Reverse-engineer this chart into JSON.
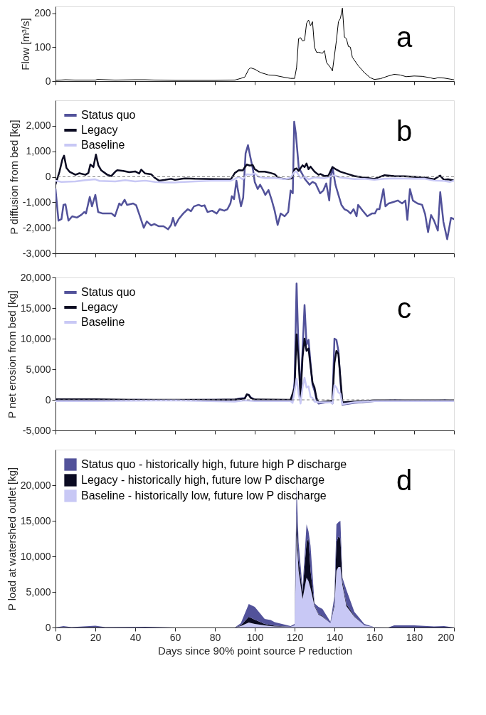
{
  "chart_data": [
    {
      "type": "line",
      "ylabel": "Flow [m³/s]",
      "annotations": [
        "a"
      ],
      "xlim": [
        0,
        200
      ],
      "xticks": [
        0,
        20,
        40,
        60,
        80,
        100,
        120,
        140,
        160,
        180,
        200
      ],
      "ylim": [
        0,
        220
      ],
      "yticks": [
        0,
        100,
        200
      ],
      "tick_labels": "y",
      "grid": false,
      "legend": false,
      "marker": "none",
      "line_style": "solid",
      "series": [
        {
          "color": "#000000",
          "x": [
            0,
            5,
            10,
            20,
            21,
            30,
            40,
            45,
            50,
            60,
            70,
            80,
            90,
            93,
            95,
            97,
            98,
            100,
            103,
            107,
            110,
            115,
            118,
            120,
            121,
            122,
            123,
            124,
            125,
            126,
            127,
            128,
            129,
            130,
            131,
            132,
            134,
            135,
            136,
            138,
            139,
            141,
            142,
            143,
            144,
            145,
            146,
            147,
            148,
            149,
            152,
            155,
            158,
            160,
            163,
            167,
            170,
            173,
            176,
            180,
            184,
            188,
            190,
            192,
            195,
            198,
            200
          ],
          "values": [
            2,
            4,
            3,
            3,
            5,
            3,
            4,
            4,
            3,
            2,
            2,
            2,
            3,
            8,
            12,
            35,
            39,
            35,
            25,
            18,
            17,
            11,
            8,
            8,
            40,
            125,
            128,
            118,
            120,
            170,
            180,
            163,
            175,
            100,
            85,
            85,
            82,
            90,
            55,
            40,
            30,
            120,
            175,
            185,
            215,
            130,
            125,
            102,
            100,
            70,
            45,
            25,
            10,
            5,
            7,
            15,
            20,
            18,
            13,
            15,
            14,
            10,
            7,
            10,
            9,
            6,
            4
          ]
        }
      ]
    },
    {
      "type": "line",
      "ylabel": "P diffusion from bed [kg]",
      "annotations": [
        "b"
      ],
      "xlim": [
        0,
        200
      ],
      "xticks": [
        0,
        20,
        40,
        60,
        80,
        100,
        120,
        140,
        160,
        180,
        200
      ],
      "ylim": [
        -3000,
        3000
      ],
      "yticks": [
        {
          "value": -3000,
          "label": "-3,000"
        },
        {
          "value": -2000,
          "label": "-2,000"
        },
        {
          "value": -1000,
          "label": "-1,000"
        },
        0,
        {
          "value": 1000,
          "label": "1,000"
        },
        {
          "value": 2000,
          "label": "2,000"
        }
      ],
      "tick_labels": "y",
      "grid": false,
      "legend": "top left",
      "marker": "none",
      "line_style": "solid",
      "ref_lines": [
        {
          "axis": "y",
          "value": 0,
          "color": "#808080",
          "line_style": "dashed"
        }
      ],
      "series": [
        {
          "name": "Status quo",
          "color": "#52529a",
          "x": [
            0,
            1.5,
            3,
            4,
            5,
            6.5,
            8.4,
            10.7,
            13,
            14.5,
            15.3,
            17.2,
            18.3,
            20,
            21.4,
            23.7,
            28.2,
            29.8,
            32,
            33,
            34.7,
            35.9,
            39,
            40.5,
            42,
            44.3,
            45.8,
            48,
            49.6,
            51.9,
            54.2,
            56.5,
            58,
            59,
            60,
            61.8,
            64.1,
            66.4,
            68,
            69.5,
            71.8,
            73.3,
            74.8,
            76.3,
            78.6,
            80.9,
            82.4,
            84.7,
            86.3,
            87.8,
            88.5,
            89.6,
            90.8,
            91.6,
            93.1,
            94.2,
            95.4,
            96.6,
            97.7,
            99.2,
            100,
            101.5,
            102.7,
            104.3,
            105.3,
            106.9,
            108.4,
            110,
            111.5,
            113,
            115,
            116.8,
            118,
            119.1,
            119.8,
            120.6,
            122.1,
            123.7,
            125.2,
            127.5,
            129,
            130.5,
            132.8,
            134.4,
            135.9,
            137.4,
            138.2,
            139,
            140.5,
            142,
            143.5,
            145,
            146.6,
            148.1,
            149.6,
            151.1,
            151.9,
            154.2,
            156.5,
            158.8,
            160.3,
            161.4,
            162.6,
            164.6,
            165.6,
            167.2,
            169.5,
            171.8,
            174,
            175.6,
            176.6,
            177.9,
            179.4,
            181.7,
            184,
            185.5,
            187,
            188.5,
            190,
            191.9,
            193.1,
            194.7,
            196.6,
            198.5,
            200
          ],
          "values": [
            -480,
            -1720,
            -1660,
            -1100,
            -1080,
            -1720,
            -1550,
            -1600,
            -1490,
            -1380,
            -1440,
            -790,
            -1160,
            -710,
            -1380,
            -1440,
            -1440,
            -1550,
            -1045,
            -1120,
            -900,
            -1100,
            -1045,
            -1120,
            -1460,
            -2000,
            -1750,
            -1910,
            -1850,
            -1940,
            -1940,
            -2060,
            -1890,
            -1610,
            -1920,
            -1660,
            -1440,
            -1270,
            -1350,
            -1160,
            -1100,
            -1150,
            -1120,
            -1380,
            -1330,
            -1440,
            -1270,
            -1330,
            -1270,
            -1045,
            -760,
            -880,
            -150,
            -540,
            -1160,
            -820,
            920,
            1240,
            810,
            250,
            -200,
            -480,
            -310,
            -540,
            -710,
            -520,
            -880,
            -1330,
            -1890,
            -1440,
            -1550,
            -1380,
            -540,
            -650,
            2160,
            1710,
            360,
            130,
            -90,
            -310,
            -200,
            -260,
            -650,
            -540,
            -260,
            -930,
            20,
            380,
            -310,
            -710,
            -1100,
            -1270,
            -1330,
            -1440,
            -1270,
            -1550,
            -1100,
            -1330,
            -1550,
            -1440,
            -1440,
            -1270,
            -1270,
            -480,
            -1160,
            -1045,
            -990,
            -930,
            -1045,
            -930,
            -1690,
            -480,
            -930,
            -1045,
            -1100,
            -1460,
            -2170,
            -1500,
            -1720,
            -2110,
            -600,
            -1770,
            -2450,
            -1610,
            -1660
          ]
        },
        {
          "name": "Legacy",
          "color": "#0b0b22",
          "x": [
            0,
            2,
            3.5,
            4.3,
            5.5,
            7,
            10,
            12,
            15,
            16.5,
            17.5,
            19,
            20.3,
            21.5,
            23,
            26,
            28,
            30,
            31,
            34,
            37,
            40,
            42,
            43,
            45,
            48,
            50,
            52,
            55,
            58,
            60,
            65,
            70,
            80,
            88,
            90,
            92,
            94,
            96,
            97.5,
            99,
            100,
            102,
            105,
            108,
            110,
            112,
            115,
            117,
            118.5,
            120,
            121,
            122,
            124,
            125,
            126,
            127,
            128,
            130,
            132,
            133,
            135,
            137,
            139,
            141,
            143,
            145,
            147,
            150,
            155,
            160,
            165,
            170,
            175,
            180,
            185,
            190,
            193,
            195,
            197,
            200
          ],
          "values": [
            -300,
            200,
            700,
            830,
            350,
            200,
            80,
            140,
            80,
            150,
            480,
            380,
            870,
            450,
            250,
            80,
            30,
            200,
            260,
            230,
            180,
            210,
            130,
            280,
            130,
            100,
            -50,
            -150,
            -120,
            -80,
            -120,
            -60,
            -80,
            -90,
            -100,
            150,
            260,
            250,
            480,
            440,
            460,
            300,
            200,
            200,
            150,
            100,
            -50,
            -80,
            -80,
            -60,
            300,
            330,
            230,
            450,
            380,
            520,
            300,
            400,
            200,
            80,
            110,
            30,
            50,
            380,
            280,
            200,
            150,
            100,
            30,
            -30,
            -80,
            60,
            30,
            20,
            0,
            -30,
            -100,
            50,
            -120,
            -100,
            -150
          ]
        },
        {
          "name": "Baseline",
          "color": "#c8c8f5",
          "x": [
            0,
            3,
            10,
            15,
            20,
            22,
            30,
            35,
            40,
            45,
            50,
            55,
            60,
            70,
            80,
            88,
            90,
            92,
            94,
            96,
            98,
            100,
            102,
            105,
            110,
            115,
            118,
            120,
            121,
            123,
            125,
            127,
            130,
            135,
            140,
            143,
            150,
            155,
            160,
            165,
            170,
            180,
            185,
            190,
            195,
            198,
            200
          ],
          "values": [
            -150,
            -200,
            -180,
            -130,
            -100,
            -160,
            -180,
            -130,
            -180,
            -150,
            -200,
            -220,
            -220,
            -180,
            -150,
            -150,
            -80,
            0,
            -100,
            100,
            80,
            130,
            0,
            -50,
            -50,
            -90,
            -40,
            200,
            200,
            -50,
            20,
            -100,
            -20,
            -60,
            60,
            -30,
            -90,
            -80,
            -120,
            -80,
            -60,
            -80,
            -70,
            -150,
            -160,
            -200,
            -150
          ]
        }
      ]
    },
    {
      "type": "line",
      "ylabel": "P net erosion from bed [kg]",
      "annotations": [
        "c"
      ],
      "xlim": [
        0,
        200
      ],
      "xticks": [
        0,
        20,
        40,
        60,
        80,
        100,
        120,
        140,
        160,
        180,
        200
      ],
      "ylim": [
        -5000,
        20000
      ],
      "yticks": [
        {
          "value": -5000,
          "label": "-5,000"
        },
        0,
        {
          "value": 5000,
          "label": "5,000"
        },
        {
          "value": 10000,
          "label": "10,000"
        },
        {
          "value": 15000,
          "label": "15,000"
        },
        {
          "value": 20000,
          "label": "20,000"
        }
      ],
      "tick_labels": "y",
      "grid": false,
      "legend": "top left",
      "marker": "none",
      "line_style": "solid",
      "ref_lines": [
        {
          "axis": "y",
          "value": 0,
          "color": "#808080",
          "line_style": "dashed"
        }
      ],
      "series": [
        {
          "name": "Status quo",
          "color": "#52529a",
          "x": [
            0,
            10,
            20,
            30,
            40,
            60,
            80,
            90,
            92,
            95,
            96,
            97,
            98,
            100,
            110,
            118,
            119,
            120,
            121,
            122,
            123,
            124,
            125,
            126,
            127,
            128,
            129,
            130,
            131,
            132,
            138,
            139,
            140,
            141,
            142,
            143,
            144,
            150,
            160,
            170,
            180,
            190,
            195,
            200
          ],
          "values": [
            0,
            -100,
            0,
            -100,
            0,
            -50,
            0,
            0,
            200,
            300,
            800,
            800,
            400,
            0,
            -100,
            -200,
            -200,
            3000,
            19000,
            8000,
            1000,
            8000,
            15500,
            9000,
            9800,
            6000,
            2500,
            1500,
            0,
            -600,
            -300,
            -600,
            10000,
            9800,
            8000,
            3000,
            -800,
            -500,
            -200,
            -100,
            -200,
            -200,
            -100,
            -200
          ]
        },
        {
          "name": "Legacy",
          "color": "#0b0b22",
          "x": [
            0,
            20,
            40,
            60,
            80,
            90,
            95,
            96,
            97,
            98,
            100,
            118,
            120,
            121,
            122,
            123,
            124,
            125,
            126,
            127,
            128,
            129,
            130,
            131,
            132,
            138,
            139,
            140,
            141,
            142,
            143,
            144,
            150,
            160,
            200
          ],
          "values": [
            100,
            100,
            0,
            0,
            0,
            50,
            200,
            900,
            800,
            300,
            50,
            0,
            2000,
            10700,
            6500,
            500,
            7000,
            10000,
            8000,
            8400,
            5500,
            2800,
            2000,
            300,
            -400,
            -200,
            -100,
            6000,
            8000,
            7500,
            3500,
            -400,
            -300,
            -100,
            -100
          ]
        },
        {
          "name": "Baseline",
          "color": "#c8c8f5",
          "x": [
            0,
            20,
            60,
            90,
            95,
            100,
            118,
            119,
            120,
            121,
            122,
            123,
            124,
            125,
            126,
            127,
            128,
            129,
            130,
            132,
            138,
            139,
            140,
            141,
            142,
            143,
            144,
            150,
            160,
            200
          ],
          "values": [
            -200,
            -200,
            -100,
            -300,
            -100,
            -200,
            -200,
            -500,
            1500,
            3500,
            1000,
            -600,
            2000,
            3600,
            2000,
            2200,
            500,
            300,
            -300,
            -400,
            -400,
            -600,
            2400,
            2000,
            1200,
            1000,
            -700,
            -400,
            -200,
            -200
          ]
        }
      ]
    },
    {
      "type": "area",
      "stacked": true,
      "ylabel": "P load at watershed outlet [kg]",
      "xlabel": "Days since 90% point source P reduction",
      "annotations": [
        "d"
      ],
      "xlim": [
        0,
        200
      ],
      "xticks": [
        0,
        20,
        40,
        60,
        80,
        100,
        120,
        140,
        160,
        180,
        200
      ],
      "ylim": [
        0,
        25000
      ],
      "yticks": [
        0,
        {
          "value": 5000,
          "label": "5,000"
        },
        {
          "value": 10000,
          "label": "10,000"
        },
        {
          "value": 15000,
          "label": "15,000"
        },
        {
          "value": 20000,
          "label": "20,000"
        }
      ],
      "grid": false,
      "legend": "top left",
      "x": [
        0,
        4,
        8,
        20,
        25,
        40,
        45,
        60,
        90,
        93,
        97,
        100,
        105,
        108,
        110,
        118,
        120,
        121,
        122,
        124,
        126,
        127,
        128,
        130,
        132,
        134,
        138,
        140,
        141,
        142,
        143,
        144,
        146,
        150,
        155,
        160,
        167,
        170,
        180,
        190,
        195,
        200
      ],
      "series": [
        {
          "name": "Baseline - historically low, future low P discharge",
          "color": "#c8c8f5",
          "values": [
            0,
            50,
            0,
            0,
            0,
            0,
            0,
            0,
            0,
            200,
            700,
            500,
            300,
            200,
            150,
            100,
            300,
            13000,
            8000,
            4000,
            7000,
            6500,
            5500,
            3000,
            1800,
            1500,
            600,
            3000,
            8000,
            8500,
            8500,
            6000,
            3000,
            1500,
            300,
            50,
            0,
            0,
            0,
            0,
            0,
            0
          ]
        },
        {
          "name": "Legacy - historically high, future low P discharge",
          "color": "#0b0b22",
          "values": [
            0,
            0,
            0,
            50,
            0,
            0,
            0,
            0,
            0,
            100,
            800,
            600,
            200,
            150,
            100,
            0,
            0,
            3000,
            1500,
            1000,
            5000,
            6000,
            2500,
            200,
            100,
            100,
            0,
            400,
            4000,
            4300,
            4000,
            500,
            300,
            100,
            0,
            0,
            0,
            0,
            0,
            0,
            0,
            0
          ]
        },
        {
          "name": "Status quo - historically high, future high P discharge",
          "color": "#52529a",
          "values": [
            0,
            150,
            50,
            200,
            50,
            80,
            100,
            0,
            0,
            300,
            1800,
            1800,
            700,
            700,
            500,
            100,
            200,
            4000,
            2500,
            500,
            2500,
            1000,
            3500,
            200,
            1000,
            1000,
            200,
            1000,
            2500,
            2000,
            2500,
            500,
            2000,
            600,
            200,
            0,
            0,
            300,
            300,
            150,
            200,
            0
          ]
        }
      ]
    }
  ]
}
